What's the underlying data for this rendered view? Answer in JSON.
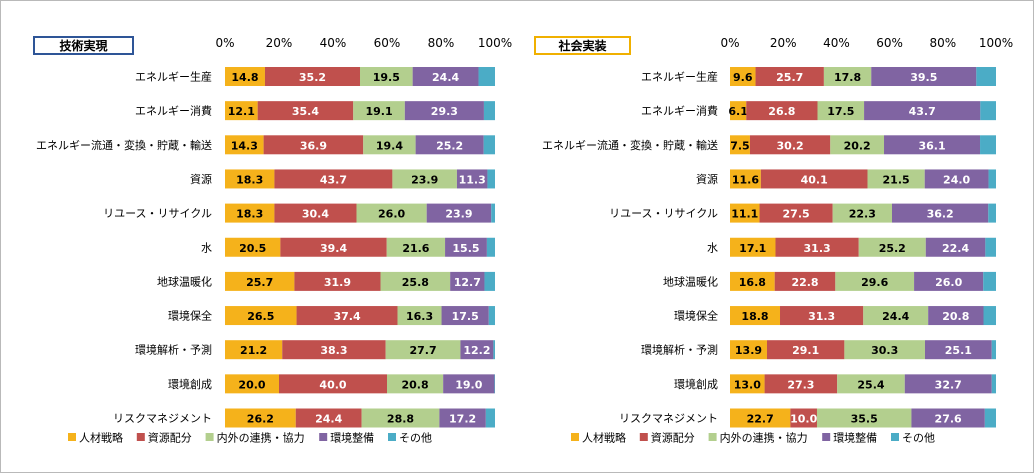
{
  "colors": {
    "人材戦略": "#f5b21b",
    "資源配分": "#c0504d",
    "内外の連携・協力": "#b3cf8e",
    "環境整備": "#8064a2",
    "その他": "#4bacc6",
    "panel_left_border": "#2e5597",
    "panel_right_border": "#f0b000"
  },
  "chart_data": [
    {
      "type": "bar",
      "orientation": "horizontal",
      "stacked": "percent",
      "title": "技術実現",
      "xlim": [
        0,
        100
      ],
      "x_ticks": [
        "0%",
        "20%",
        "40%",
        "60%",
        "80%",
        "100%"
      ],
      "grid": false,
      "legend_position": "bottom",
      "categories": [
        "エネルギー生産",
        "エネルギー消費",
        "エネルギー流通・変換・貯蔵・輸送",
        "資源",
        "リユース・リサイクル",
        "水",
        "地球温暖化",
        "環境保全",
        "環境解析・予測",
        "環境創成",
        "リスクマネジメント"
      ],
      "series": [
        {
          "name": "人材戦略",
          "values": [
            14.8,
            12.1,
            14.3,
            18.3,
            18.3,
            20.5,
            25.7,
            26.5,
            21.2,
            20.0,
            26.2
          ],
          "labels": [
            "14.8",
            "12.1",
            "14.3",
            "18.3",
            "18.3",
            "20.5",
            "25.7",
            "26.5",
            "21.2",
            "20.0",
            "26.2"
          ]
        },
        {
          "name": "資源配分",
          "values": [
            35.2,
            35.4,
            36.9,
            43.7,
            30.4,
            39.4,
            31.9,
            37.4,
            38.3,
            40.0,
            24.4
          ],
          "labels": [
            "35.2",
            "35.4",
            "36.9",
            "43.7",
            "30.4",
            "39.4",
            "31.9",
            "37.4",
            "38.3",
            "40.0",
            "24.4"
          ]
        },
        {
          "name": "内外の連携・協力",
          "values": [
            19.5,
            19.1,
            19.4,
            23.9,
            26.0,
            21.6,
            25.8,
            16.3,
            27.7,
            20.8,
            28.8
          ],
          "labels": [
            "19.5",
            "19.1",
            "19.4",
            "23.9",
            "26.0",
            "21.6",
            "25.8",
            "16.3",
            "27.7",
            "20.8",
            "28.8"
          ]
        },
        {
          "name": "環境整備",
          "values": [
            24.4,
            29.3,
            25.2,
            11.3,
            23.9,
            15.5,
            12.7,
            17.5,
            12.2,
            19.0,
            17.2
          ],
          "labels": [
            "24.4",
            "29.3",
            "25.2",
            "11.3",
            "23.9",
            "15.5",
            "12.7",
            "17.5",
            "12.2",
            "19.0",
            "17.2"
          ]
        },
        {
          "name": "その他",
          "values": [
            6.1,
            4.1,
            4.2,
            2.8,
            1.4,
            3.0,
            3.9,
            2.3,
            0.6,
            0.2,
            3.4
          ],
          "labels": [
            "",
            "",
            "",
            "",
            "",
            "",
            "",
            "",
            "",
            "",
            ""
          ]
        }
      ]
    },
    {
      "type": "bar",
      "orientation": "horizontal",
      "stacked": "percent",
      "title": "社会実装",
      "xlim": [
        0,
        100
      ],
      "x_ticks": [
        "0%",
        "20%",
        "40%",
        "60%",
        "80%",
        "100%"
      ],
      "grid": false,
      "legend_position": "bottom",
      "categories": [
        "エネルギー生産",
        "エネルギー消費",
        "エネルギー流通・変換・貯蔵・輸送",
        "資源",
        "リユース・リサイクル",
        "水",
        "地球温暖化",
        "環境保全",
        "環境解析・予測",
        "環境創成",
        "リスクマネジメント"
      ],
      "series": [
        {
          "name": "人材戦略",
          "values": [
            9.6,
            6.1,
            7.5,
            11.6,
            11.1,
            17.1,
            16.8,
            18.8,
            13.9,
            13.0,
            22.7
          ],
          "labels": [
            "9.6",
            "6.1",
            "7.5",
            "11.6",
            "11.1",
            "17.1",
            "16.8",
            "18.8",
            "13.9",
            "13.0",
            "22.7"
          ]
        },
        {
          "name": "資源配分",
          "values": [
            25.7,
            26.8,
            30.2,
            40.1,
            27.5,
            31.3,
            22.8,
            31.3,
            29.1,
            27.3,
            10.0
          ],
          "labels": [
            "25.7",
            "26.8",
            "30.2",
            "40.1",
            "27.5",
            "31.3",
            "22.8",
            "31.3",
            "29.1",
            "27.3",
            "10.0"
          ]
        },
        {
          "name": "内外の連携・協力",
          "values": [
            17.8,
            17.5,
            20.2,
            21.5,
            22.3,
            25.2,
            29.6,
            24.4,
            30.3,
            25.4,
            35.5
          ],
          "labels": [
            "17.8",
            "17.5",
            "20.2",
            "21.5",
            "22.3",
            "25.2",
            "29.6",
            "24.4",
            "30.3",
            "25.4",
            "35.5"
          ]
        },
        {
          "name": "環境整備",
          "values": [
            39.5,
            43.7,
            36.1,
            24.0,
            36.2,
            22.4,
            26.0,
            20.8,
            25.1,
            32.7,
            27.6
          ],
          "labels": [
            "39.5",
            "43.7",
            "36.1",
            "24.0",
            "36.2",
            "22.4",
            "26.0",
            "20.8",
            "25.1",
            "32.7",
            "27.6"
          ]
        },
        {
          "name": "その他",
          "values": [
            7.4,
            5.9,
            6.0,
            2.8,
            2.9,
            4.0,
            4.8,
            4.7,
            1.6,
            1.6,
            4.2
          ],
          "labels": [
            "",
            "",
            "",
            "",
            "",
            "",
            "",
            "",
            "",
            "",
            ""
          ]
        }
      ]
    }
  ]
}
